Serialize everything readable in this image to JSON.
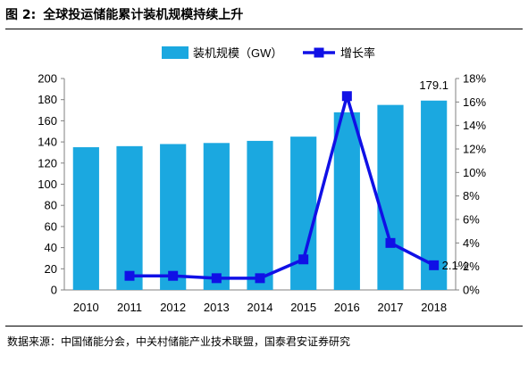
{
  "figure": {
    "label": "图 2:",
    "title": "全球投运储能累计装机规模持续上升",
    "source": "数据来源：中国储能分会，中关村储能产业技术联盟，国泰君安证券研究"
  },
  "colors": {
    "bar": "#1ba8e0",
    "line": "#1010e6",
    "axis": "#808080"
  },
  "chart_data": {
    "type": "bar",
    "categories": [
      "2010",
      "2011",
      "2012",
      "2013",
      "2014",
      "2015",
      "2016",
      "2017",
      "2018"
    ],
    "series": [
      {
        "name": "装机规模（GW）",
        "type": "bar",
        "axis": "left",
        "values": [
          135,
          136,
          138,
          139,
          141,
          145,
          168,
          175,
          179.1
        ]
      },
      {
        "name": "增长率",
        "type": "line",
        "axis": "right",
        "values": [
          null,
          1.2,
          1.2,
          1.0,
          1.0,
          2.6,
          16.5,
          4.0,
          2.1
        ]
      }
    ],
    "ylim": [
      0,
      200
    ],
    "yticks": [
      "0",
      "20",
      "40",
      "60",
      "80",
      "100",
      "120",
      "140",
      "160",
      "180",
      "200"
    ],
    "y2lim": [
      0,
      18
    ],
    "y2ticks": [
      "0%",
      "2%",
      "4%",
      "6%",
      "8%",
      "10%",
      "12%",
      "14%",
      "16%",
      "18%"
    ],
    "annotations": [
      {
        "series": 0,
        "index": 8,
        "text": "179.1"
      },
      {
        "series": 1,
        "index": 8,
        "text": "2.1%"
      }
    ],
    "legend": "top-center",
    "grid": false
  }
}
